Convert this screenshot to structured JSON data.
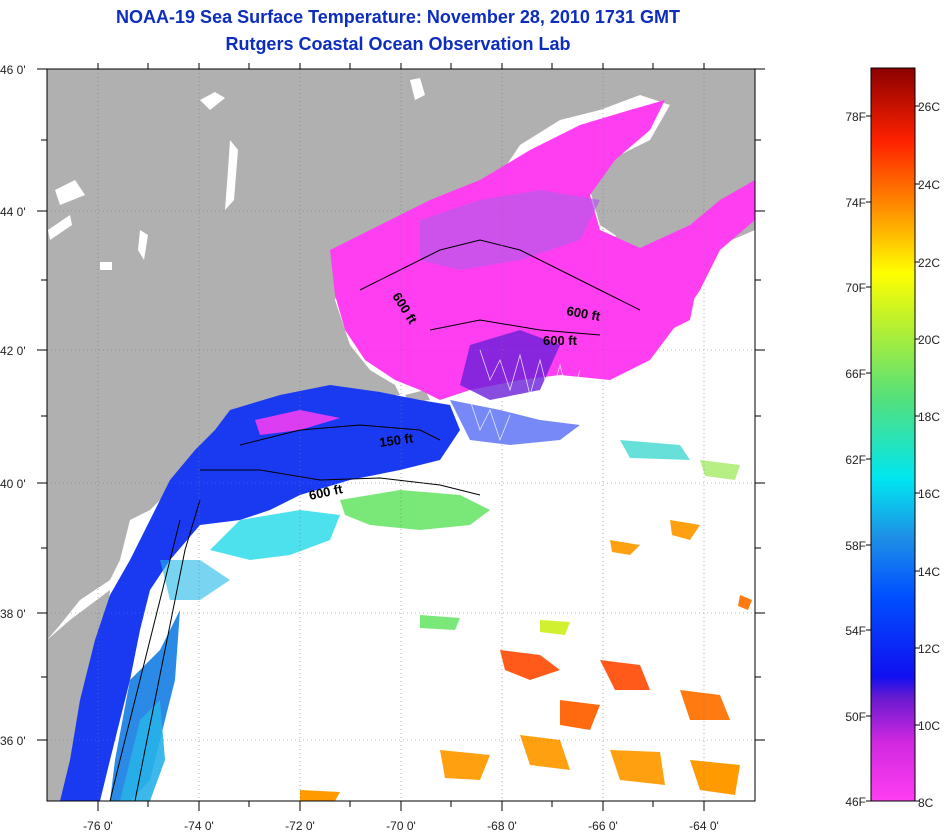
{
  "title": "NOAA-19 Sea Surface Temperature:  November 28, 2010 1731 GMT",
  "subtitle": "Rutgers Coastal Ocean Observation Lab",
  "map": {
    "lat_range": [
      35,
      46
    ],
    "lon_range": [
      -77,
      -63
    ],
    "lat_labels": [
      "46 0'",
      "44 0'",
      "42 0'",
      "40 0'",
      "38 0'",
      "36 0'"
    ],
    "lon_labels": [
      "-76 0'",
      "-74 0'",
      "-72 0'",
      "-70 0'",
      "-68 0'",
      "-66 0'",
      "-64 0'"
    ],
    "contour_labels": [
      "600 ft",
      "600 ft",
      "600 ft",
      "150 ft",
      "600 ft"
    ],
    "land_color": "#b0b0b0",
    "cloud_color": "#ffffff"
  },
  "colorbar": {
    "f_labels": [
      "78F",
      "74F",
      "70F",
      "66F",
      "62F",
      "58F",
      "54F",
      "50F",
      "46F"
    ],
    "c_labels": [
      "26C",
      "24C",
      "22C",
      "20C",
      "18C",
      "16C",
      "14C",
      "12C",
      "10C",
      "8C"
    ],
    "range_c": [
      8,
      27
    ],
    "colors": [
      "#ff3ef2",
      "#ff3ef2",
      "#7a1dc9",
      "#0000ff",
      "#1e88e6",
      "#00e0f0",
      "#66e066",
      "#ffff00",
      "#ff9900",
      "#ff2200",
      "#8b0000"
    ]
  }
}
